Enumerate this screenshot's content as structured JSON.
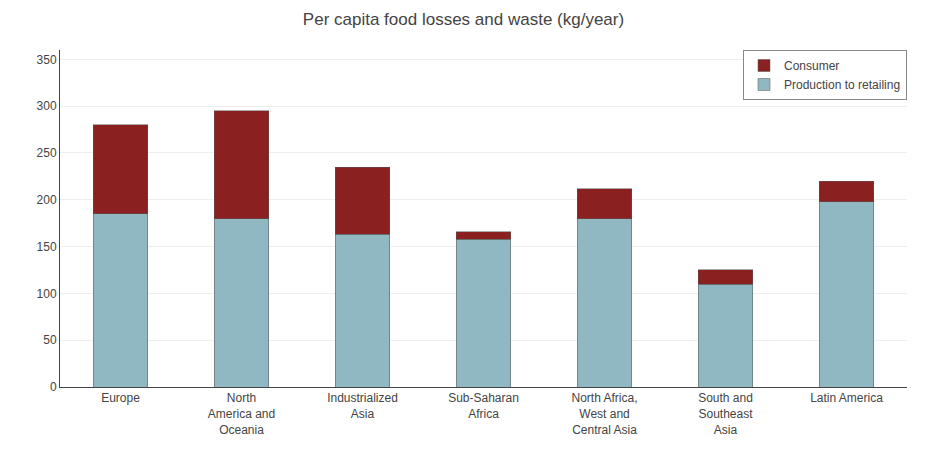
{
  "chart_data": {
    "type": "bar",
    "title": "Per capita food losses and waste (kg/year)",
    "categories": [
      "Europe",
      "North\nAmerica and\nOceania",
      "Industrialized\nAsia",
      "Sub-Saharan\nAfrica",
      "North Africa,\nWest and\nCentral Asia",
      "South and\nSoutheast\nAsia",
      "Latin America"
    ],
    "series": [
      {
        "name": "Production to retailing",
        "color": "#8fb8c2",
        "values": [
          185,
          180,
          163,
          158,
          180,
          110,
          198
        ]
      },
      {
        "name": "Consumer",
        "color": "#8b2020",
        "values": [
          95,
          115,
          72,
          8,
          32,
          15,
          22
        ]
      }
    ],
    "stacked": true,
    "ylim": [
      0,
      360
    ],
    "yticks": [
      0,
      50,
      100,
      150,
      200,
      250,
      300,
      350
    ],
    "grid": true,
    "legend": "upper right"
  }
}
